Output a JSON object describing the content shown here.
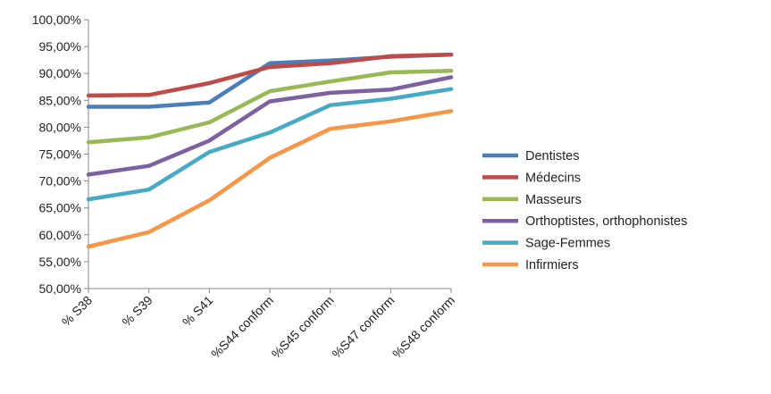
{
  "chart_data": {
    "type": "line",
    "title": "",
    "xlabel": "",
    "ylabel": "",
    "categories": [
      "% S38",
      "% S39",
      "% S41",
      "%S44  conform",
      "%S45 conform",
      "%S47 conform",
      "%S48 conform"
    ],
    "ylim": [
      0.5,
      1.0
    ],
    "ytick_step": 0.05,
    "ytick_labels": [
      "50,00%",
      "55,00%",
      "60,00%",
      "65,00%",
      "70,00%",
      "75,00%",
      "80,00%",
      "85,00%",
      "90,00%",
      "95,00%",
      "100,00%"
    ],
    "grid": false,
    "legend": "right",
    "series": [
      {
        "name": "Dentistes",
        "color": "#4a7ebb",
        "values": [
          0.838,
          0.838,
          0.846,
          0.919,
          0.924,
          0.931,
          0.935
        ]
      },
      {
        "name": "Médecins",
        "color": "#be4b48",
        "values": [
          0.859,
          0.86,
          0.882,
          0.912,
          0.919,
          0.932,
          0.935
        ]
      },
      {
        "name": "Masseurs",
        "color": "#98b954",
        "values": [
          0.772,
          0.781,
          0.809,
          0.867,
          0.885,
          0.902,
          0.905
        ]
      },
      {
        "name": "Orthoptistes, orthophonistes",
        "color": "#7d60a0",
        "values": [
          0.712,
          0.728,
          0.775,
          0.848,
          0.864,
          0.87,
          0.893
        ]
      },
      {
        "name": "Sage-Femmes",
        "color": "#46aac5",
        "values": [
          0.666,
          0.684,
          0.754,
          0.79,
          0.841,
          0.853,
          0.871
        ]
      },
      {
        "name": "Infirmiers",
        "color": "#f79646",
        "values": [
          0.578,
          0.605,
          0.664,
          0.743,
          0.797,
          0.811,
          0.83
        ]
      }
    ]
  }
}
